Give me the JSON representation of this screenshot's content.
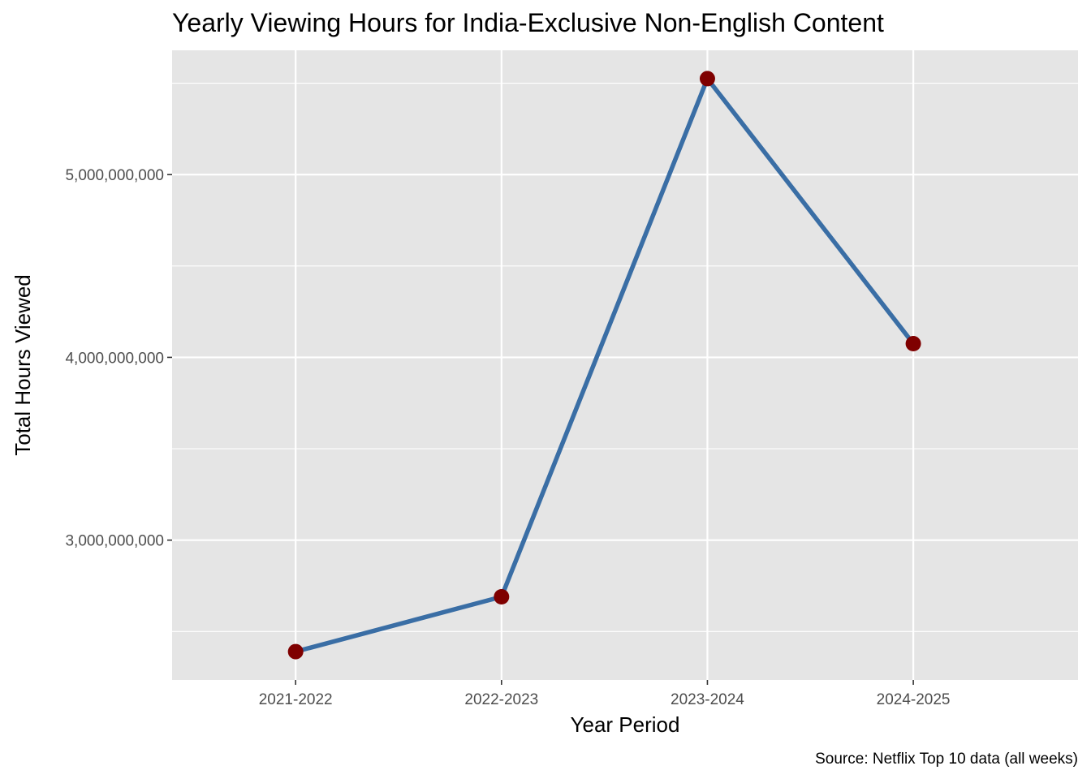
{
  "chart_data": {
    "type": "line",
    "title": "Yearly Viewing Hours for India-Exclusive Non-English Content",
    "xlabel": "Year Period",
    "ylabel": "Total Hours Viewed",
    "caption": "Source: Netflix Top 10 data (all weeks)",
    "categories": [
      "2021-2022",
      "2022-2023",
      "2023-2024",
      "2024-2025"
    ],
    "series": [
      {
        "values": [
          2390000000,
          2690000000,
          5525000000,
          4075000000
        ]
      }
    ],
    "y_ticks": [
      3000000000,
      4000000000,
      5000000000
    ],
    "y_tick_labels": [
      "3,000,000,000",
      "4,000,000,000",
      "5,000,000,000"
    ],
    "ylim": [
      2235000000,
      5680000000
    ],
    "grid": true,
    "legend": "none",
    "colors": {
      "panel_background": "#e5e5e5",
      "grid": "#ffffff",
      "line": "#3a6ea5",
      "point": "#7f0000",
      "tick_text": "#4d4d4d",
      "tick_mark": "#333333"
    }
  }
}
